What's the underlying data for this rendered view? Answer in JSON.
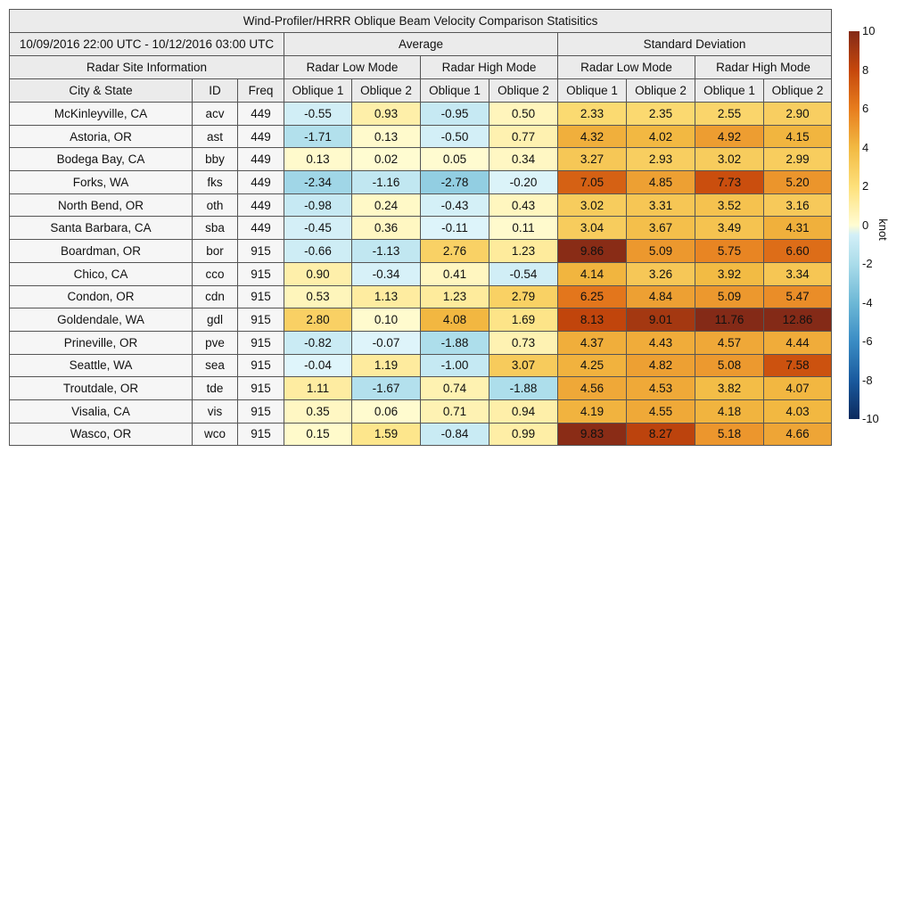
{
  "title": "Wind-Profiler/HRRR Oblique Beam Velocity Comparison Statisitics",
  "date_range": "10/09/2016 22:00 UTC - 10/12/2016 03:00 UTC",
  "groups": {
    "average": "Average",
    "std": "Standard Deviation",
    "site_info": "Radar Site Information"
  },
  "modes": {
    "low": "Radar Low Mode",
    "high": "Radar High Mode"
  },
  "columns": {
    "city": "City & State",
    "id": "ID",
    "freq": "Freq",
    "ob1": "Oblique 1",
    "ob2": "Oblique 2"
  },
  "colorbar": {
    "label": "knot",
    "ticks": [
      "10",
      "8",
      "6",
      "4",
      "2",
      "0",
      "-2",
      "-4",
      "-6",
      "-8",
      "-10"
    ]
  },
  "chart_data": {
    "type": "table",
    "title": "Wind-Profiler/HRRR Oblique Beam Velocity Comparison Statisitics",
    "color_range": [
      -10,
      10
    ],
    "colors": {
      "neg": [
        "#e0f5fb",
        "#aadcea",
        "#6db8d6",
        "#3a8cc4",
        "#1a5a9e",
        "#0b2a5e"
      ],
      "pos": [
        "#fffcd2",
        "#fde07a",
        "#f2b942",
        "#e77d1e",
        "#c5470b",
        "#842a17"
      ]
    },
    "value_columns": [
      "Average Low Oblique 1",
      "Average Low Oblique 2",
      "Average High Oblique 1",
      "Average High Oblique 2",
      "Std Low Oblique 1",
      "Std Low Oblique 2",
      "Std High Oblique 1",
      "Std High Oblique 2"
    ],
    "rows": [
      {
        "city": "McKinleyville, CA",
        "id": "acv",
        "freq": "449",
        "values": [
          "-0.55",
          "0.93",
          "-0.95",
          "0.50",
          "2.33",
          "2.35",
          "2.55",
          "2.90"
        ]
      },
      {
        "city": "Astoria, OR",
        "id": "ast",
        "freq": "449",
        "values": [
          "-1.71",
          "0.13",
          "-0.50",
          "0.77",
          "4.32",
          "4.02",
          "4.92",
          "4.15"
        ]
      },
      {
        "city": "Bodega Bay, CA",
        "id": "bby",
        "freq": "449",
        "values": [
          "0.13",
          "0.02",
          "0.05",
          "0.34",
          "3.27",
          "2.93",
          "3.02",
          "2.99"
        ]
      },
      {
        "city": "Forks, WA",
        "id": "fks",
        "freq": "449",
        "values": [
          "-2.34",
          "-1.16",
          "-2.78",
          "-0.20",
          "7.05",
          "4.85",
          "7.73",
          "5.20"
        ]
      },
      {
        "city": "North Bend, OR",
        "id": "oth",
        "freq": "449",
        "values": [
          "-0.98",
          "0.24",
          "-0.43",
          "0.43",
          "3.02",
          "3.31",
          "3.52",
          "3.16"
        ]
      },
      {
        "city": "Santa Barbara, CA",
        "id": "sba",
        "freq": "449",
        "values": [
          "-0.45",
          "0.36",
          "-0.11",
          "0.11",
          "3.04",
          "3.67",
          "3.49",
          "4.31"
        ]
      },
      {
        "city": "Boardman, OR",
        "id": "bor",
        "freq": "915",
        "values": [
          "-0.66",
          "-1.13",
          "2.76",
          "1.23",
          "9.86",
          "5.09",
          "5.75",
          "6.60"
        ]
      },
      {
        "city": "Chico, CA",
        "id": "cco",
        "freq": "915",
        "values": [
          "0.90",
          "-0.34",
          "0.41",
          "-0.54",
          "4.14",
          "3.26",
          "3.92",
          "3.34"
        ]
      },
      {
        "city": "Condon, OR",
        "id": "cdn",
        "freq": "915",
        "values": [
          "0.53",
          "1.13",
          "1.23",
          "2.79",
          "6.25",
          "4.84",
          "5.09",
          "5.47"
        ]
      },
      {
        "city": "Goldendale, WA",
        "id": "gdl",
        "freq": "915",
        "values": [
          "2.80",
          "0.10",
          "4.08",
          "1.69",
          "8.13",
          "9.01",
          "11.76",
          "12.86"
        ]
      },
      {
        "city": "Prineville, OR",
        "id": "pve",
        "freq": "915",
        "values": [
          "-0.82",
          "-0.07",
          "-1.88",
          "0.73",
          "4.37",
          "4.43",
          "4.57",
          "4.44"
        ]
      },
      {
        "city": "Seattle, WA",
        "id": "sea",
        "freq": "915",
        "values": [
          "-0.04",
          "1.19",
          "-1.00",
          "3.07",
          "4.25",
          "4.82",
          "5.08",
          "7.58"
        ]
      },
      {
        "city": "Troutdale, OR",
        "id": "tde",
        "freq": "915",
        "values": [
          "1.11",
          "-1.67",
          "0.74",
          "-1.88",
          "4.56",
          "4.53",
          "3.82",
          "4.07"
        ]
      },
      {
        "city": "Visalia, CA",
        "id": "vis",
        "freq": "915",
        "values": [
          "0.35",
          "0.06",
          "0.71",
          "0.94",
          "4.19",
          "4.55",
          "4.18",
          "4.03"
        ]
      },
      {
        "city": "Wasco, OR",
        "id": "wco",
        "freq": "915",
        "values": [
          "0.15",
          "1.59",
          "-0.84",
          "0.99",
          "9.83",
          "8.27",
          "5.18",
          "4.66"
        ]
      }
    ]
  }
}
